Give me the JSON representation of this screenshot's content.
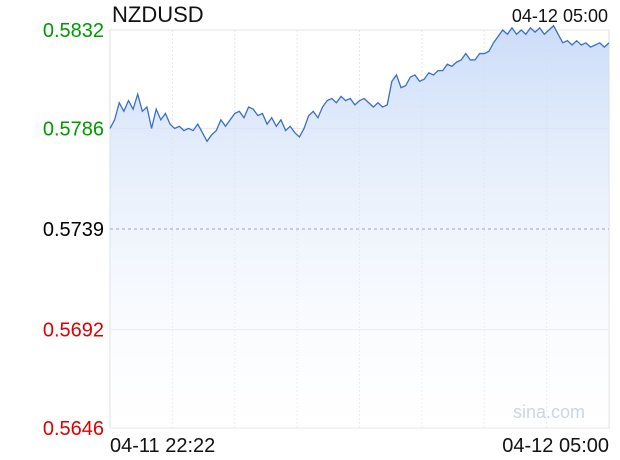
{
  "chart_data": {
    "type": "area",
    "title": "NZDUSD",
    "timestamp": "04-12 05:00",
    "watermark": "sina.com",
    "xlabel": "",
    "ylabel": "",
    "y_ticks": [
      {
        "label": "0.5832",
        "value": 0.5832,
        "color": "#009900"
      },
      {
        "label": "0.5786",
        "value": 0.5786,
        "color": "#009900"
      },
      {
        "label": "0.5739",
        "value": 0.5739,
        "color": "#000000"
      },
      {
        "label": "0.5692",
        "value": 0.5692,
        "color": "#dd0000"
      },
      {
        "label": "0.5646",
        "value": 0.5646,
        "color": "#dd0000"
      }
    ],
    "x_ticks": [
      "04-11 22:22",
      "04-12 05:00"
    ],
    "reference_value": 0.5739,
    "ylim": [
      0.5646,
      0.5832
    ],
    "grid": true,
    "line_color": "#3a6fc7",
    "fill_color": "#d6e3fb",
    "series": [
      {
        "values": [
          0.5786,
          0.579,
          0.5798,
          0.5794,
          0.5799,
          0.5795,
          0.5802,
          0.5794,
          0.5796,
          0.5786,
          0.5795,
          0.579,
          0.5793,
          0.5788,
          0.5786,
          0.5787,
          0.5785,
          0.5786,
          0.5785,
          0.5788,
          0.5784,
          0.578,
          0.5783,
          0.5785,
          0.579,
          0.5787,
          0.579,
          0.5793,
          0.5794,
          0.5791,
          0.5796,
          0.5795,
          0.5792,
          0.5793,
          0.5788,
          0.5791,
          0.5787,
          0.579,
          0.5785,
          0.5787,
          0.5784,
          0.5782,
          0.5786,
          0.5792,
          0.5794,
          0.5791,
          0.5796,
          0.5799,
          0.58,
          0.5798,
          0.5801,
          0.5799,
          0.58,
          0.5797,
          0.5799,
          0.58,
          0.5798,
          0.5796,
          0.5798,
          0.5796,
          0.5797,
          0.5808,
          0.5811,
          0.5805,
          0.5806,
          0.581,
          0.5811,
          0.5808,
          0.5809,
          0.5812,
          0.5811,
          0.5813,
          0.5813,
          0.5816,
          0.5815,
          0.5817,
          0.5818,
          0.5821,
          0.5818,
          0.5818,
          0.5821,
          0.5821,
          0.5822,
          0.5826,
          0.5829,
          0.5832,
          0.583,
          0.5833,
          0.583,
          0.5832,
          0.583,
          0.5833,
          0.5831,
          0.5833,
          0.583,
          0.5832,
          0.5834,
          0.583,
          0.5826,
          0.5827,
          0.5825,
          0.5827,
          0.5825,
          0.5826,
          0.5824,
          0.5825,
          0.5826,
          0.5824,
          0.5826
        ]
      }
    ]
  }
}
